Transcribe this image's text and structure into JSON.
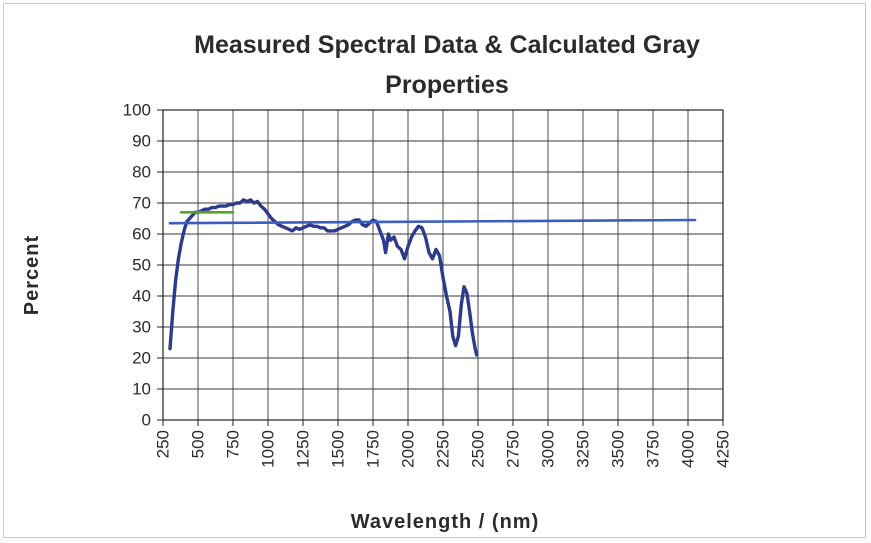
{
  "chart_data": {
    "type": "line",
    "title_lines": [
      "Measured Spectral Data & Calculated Gray",
      "Properties"
    ],
    "xlabel": "Wavelength / (nm)",
    "ylabel": "Percent",
    "xlim": [
      250,
      4250
    ],
    "ylim": [
      0,
      100
    ],
    "x_ticks": [
      250,
      500,
      750,
      1000,
      1250,
      1500,
      1750,
      2000,
      2250,
      2500,
      2750,
      3000,
      3250,
      3500,
      3750,
      4000,
      4250
    ],
    "y_ticks": [
      0,
      10,
      20,
      30,
      40,
      50,
      60,
      70,
      80,
      90,
      100
    ],
    "grid": true,
    "legend": "none",
    "series": [
      {
        "color": "#2e3a8c",
        "points": [
          [
            300,
            23
          ],
          [
            320,
            35
          ],
          [
            340,
            45
          ],
          [
            360,
            52
          ],
          [
            380,
            57
          ],
          [
            400,
            61
          ],
          [
            420,
            64
          ],
          [
            440,
            65
          ],
          [
            460,
            66
          ],
          [
            480,
            67
          ],
          [
            500,
            67
          ],
          [
            525,
            67.5
          ],
          [
            550,
            68
          ],
          [
            575,
            68
          ],
          [
            600,
            68.5
          ],
          [
            625,
            68.5
          ],
          [
            650,
            69
          ],
          [
            675,
            69
          ],
          [
            700,
            69
          ],
          [
            725,
            69.5
          ],
          [
            750,
            69.5
          ],
          [
            775,
            70
          ],
          [
            800,
            70
          ],
          [
            825,
            71
          ],
          [
            850,
            70.5
          ],
          [
            875,
            71
          ],
          [
            900,
            70
          ],
          [
            925,
            70.5
          ],
          [
            950,
            69
          ],
          [
            975,
            68
          ],
          [
            1000,
            66.5
          ],
          [
            1025,
            65
          ],
          [
            1050,
            64
          ],
          [
            1075,
            63
          ],
          [
            1100,
            62.5
          ],
          [
            1125,
            62
          ],
          [
            1150,
            61.5
          ],
          [
            1175,
            61
          ],
          [
            1200,
            62
          ],
          [
            1225,
            61.5
          ],
          [
            1250,
            62
          ],
          [
            1275,
            62.5
          ],
          [
            1300,
            63
          ],
          [
            1325,
            62.5
          ],
          [
            1350,
            62.5
          ],
          [
            1375,
            62
          ],
          [
            1400,
            62
          ],
          [
            1425,
            61
          ],
          [
            1450,
            61
          ],
          [
            1475,
            61
          ],
          [
            1500,
            61.5
          ],
          [
            1525,
            62
          ],
          [
            1550,
            62.5
          ],
          [
            1575,
            63
          ],
          [
            1600,
            64
          ],
          [
            1625,
            64.5
          ],
          [
            1650,
            64.5
          ],
          [
            1675,
            63
          ],
          [
            1700,
            62.5
          ],
          [
            1725,
            63.5
          ],
          [
            1750,
            64.5
          ],
          [
            1775,
            64
          ],
          [
            1800,
            61
          ],
          [
            1825,
            58
          ],
          [
            1840,
            54
          ],
          [
            1860,
            60
          ],
          [
            1875,
            58
          ],
          [
            1900,
            59
          ],
          [
            1925,
            56
          ],
          [
            1950,
            55
          ],
          [
            1975,
            52
          ],
          [
            2000,
            56
          ],
          [
            2025,
            59
          ],
          [
            2050,
            61
          ],
          [
            2075,
            62.5
          ],
          [
            2100,
            62
          ],
          [
            2125,
            59
          ],
          [
            2150,
            54
          ],
          [
            2175,
            52
          ],
          [
            2200,
            55
          ],
          [
            2225,
            53
          ],
          [
            2250,
            46
          ],
          [
            2275,
            40
          ],
          [
            2300,
            35
          ],
          [
            2320,
            27
          ],
          [
            2340,
            24
          ],
          [
            2360,
            27
          ],
          [
            2380,
            37
          ],
          [
            2400,
            43
          ],
          [
            2420,
            41
          ],
          [
            2440,
            35
          ],
          [
            2460,
            28
          ],
          [
            2480,
            23
          ],
          [
            2490,
            21
          ]
        ]
      },
      {
        "color": "#3a5fc0",
        "points": [
          [
            300,
            63.5
          ],
          [
            4050,
            64.5
          ]
        ]
      },
      {
        "color": "#5aa02c",
        "points": [
          [
            380,
            67
          ],
          [
            750,
            67
          ]
        ]
      }
    ]
  }
}
